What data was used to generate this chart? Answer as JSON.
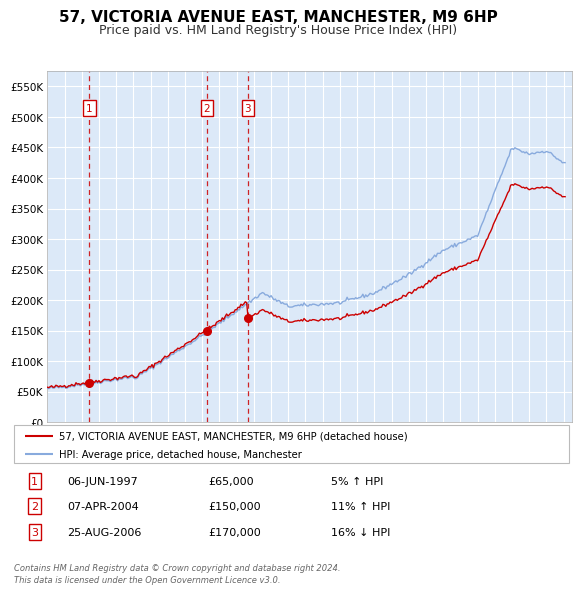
{
  "title": "57, VICTORIA AVENUE EAST, MANCHESTER, M9 6HP",
  "subtitle": "Price paid vs. HM Land Registry's House Price Index (HPI)",
  "legend_label_red": "57, VICTORIA AVENUE EAST, MANCHESTER, M9 6HP (detached house)",
  "legend_label_blue": "HPI: Average price, detached house, Manchester",
  "footer": "Contains HM Land Registry data © Crown copyright and database right 2024.\nThis data is licensed under the Open Government Licence v3.0.",
  "transactions": [
    {
      "num": 1,
      "date": "06-JUN-1997",
      "price": 65000,
      "hpi_diff": "5% ↑ HPI",
      "x_year": 1997.44
    },
    {
      "num": 2,
      "date": "07-APR-2004",
      "price": 150000,
      "hpi_diff": "11% ↑ HPI",
      "x_year": 2004.27
    },
    {
      "num": 3,
      "date": "25-AUG-2006",
      "price": 170000,
      "hpi_diff": "16% ↓ HPI",
      "x_year": 2006.65
    }
  ],
  "ylim": [
    0,
    575000
  ],
  "yticks": [
    0,
    50000,
    100000,
    150000,
    200000,
    250000,
    300000,
    350000,
    400000,
    450000,
    500000,
    550000
  ],
  "ytick_labels": [
    "£0",
    "£50K",
    "£100K",
    "£150K",
    "£200K",
    "£250K",
    "£300K",
    "£350K",
    "£400K",
    "£450K",
    "£500K",
    "£550K"
  ],
  "xlim_start": 1995.0,
  "xlim_end": 2025.5,
  "background_color": "#dce9f8",
  "grid_color": "#ffffff",
  "red_color": "#cc0000",
  "blue_color": "#88aadd",
  "title_fontsize": 11,
  "subtitle_fontsize": 9,
  "row_data": [
    [
      1,
      "06-JUN-1997",
      "£65,000",
      "5% ↑ HPI"
    ],
    [
      2,
      "07-APR-2004",
      "£150,000",
      "11% ↑ HPI"
    ],
    [
      3,
      "25-AUG-2006",
      "£170,000",
      "16% ↓ HPI"
    ]
  ]
}
